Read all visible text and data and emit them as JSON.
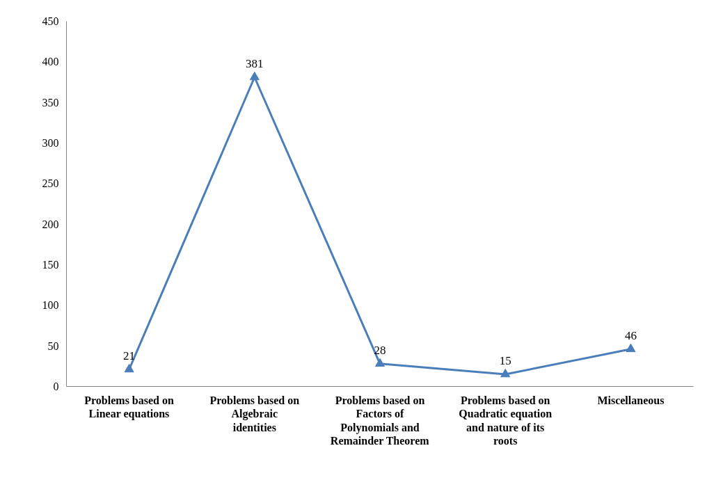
{
  "chart_data": {
    "type": "line",
    "categories": [
      "Problems based on Linear equations",
      "Problems based on Algebraic identities",
      "Problems based on Factors of Polynomials and Remainder Theorem",
      "Problems based on Quadratic equation and nature of its roots",
      "Miscellaneous"
    ],
    "series": [
      {
        "color": "#4a7ebb",
        "values": [
          21,
          381,
          28,
          15,
          46
        ]
      }
    ],
    "ylim": [
      0,
      450
    ],
    "yticks": [
      0,
      50,
      100,
      150,
      200,
      250,
      300,
      350,
      400,
      450
    ],
    "marker": "triangle",
    "line_style": "solid",
    "data_labels": true
  }
}
